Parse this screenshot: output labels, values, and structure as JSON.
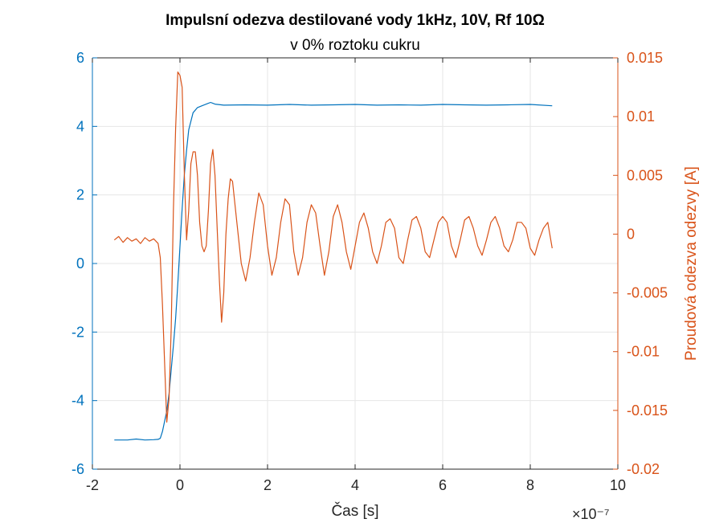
{
  "chart_data": {
    "type": "line",
    "title": "Impulsní odezva destilované vody 1kHz, 10V, Rf 10Ω",
    "subtitle": "v 0% roztoku cukru",
    "xlabel": "Čas [s]",
    "x_exponent_label": "×10⁻⁷",
    "ylabel_left": "",
    "ylabel_right": "Proudová odezva odezvy [A]",
    "xlim": [
      -2,
      10
    ],
    "ylim_left": [
      -6,
      6
    ],
    "ylim_right": [
      -0.02,
      0.015
    ],
    "x_ticks": [
      "-2",
      "0",
      "2",
      "4",
      "6",
      "8",
      "10"
    ],
    "y_ticks_left": [
      "-6",
      "-4",
      "-2",
      "0",
      "2",
      "4",
      "6"
    ],
    "y_ticks_right": [
      "-0.02",
      "-0.015",
      "-0.01",
      "-0.005",
      "0",
      "0.005",
      "0.01",
      "0.015"
    ],
    "grid": true,
    "colors": {
      "left": "#0072BD",
      "right": "#D95319",
      "grid": "#e6e6e6",
      "axis": "#262626"
    },
    "series": [
      {
        "axis": "left",
        "color": "#0072BD",
        "x": [
          -1.5,
          -1.2,
          -1.0,
          -0.8,
          -0.6,
          -0.5,
          -0.45,
          -0.4,
          -0.35,
          -0.3,
          -0.25,
          -0.2,
          -0.15,
          -0.1,
          -0.05,
          0.0,
          0.05,
          0.1,
          0.15,
          0.2,
          0.3,
          0.4,
          0.5,
          0.6,
          0.7,
          0.8,
          1.0,
          1.5,
          2.0,
          2.5,
          3.0,
          3.5,
          4.0,
          4.5,
          5.0,
          5.5,
          6.0,
          6.5,
          7.0,
          7.5,
          8.0,
          8.5
        ],
        "y": [
          -5.15,
          -5.15,
          -5.12,
          -5.15,
          -5.14,
          -5.13,
          -5.1,
          -4.9,
          -4.6,
          -4.3,
          -3.8,
          -3.1,
          -2.4,
          -1.6,
          -0.6,
          0.5,
          1.6,
          2.6,
          3.3,
          3.9,
          4.4,
          4.55,
          4.6,
          4.65,
          4.7,
          4.65,
          4.62,
          4.63,
          4.62,
          4.64,
          4.62,
          4.63,
          4.64,
          4.62,
          4.63,
          4.62,
          4.64,
          4.63,
          4.62,
          4.63,
          4.64,
          4.6
        ]
      },
      {
        "axis": "right",
        "color": "#D95319",
        "x": [
          -1.5,
          -1.4,
          -1.3,
          -1.2,
          -1.1,
          -1.0,
          -0.9,
          -0.8,
          -0.7,
          -0.6,
          -0.5,
          -0.45,
          -0.4,
          -0.35,
          -0.3,
          -0.25,
          -0.2,
          -0.15,
          -0.1,
          -0.05,
          0.0,
          0.05,
          0.1,
          0.15,
          0.2,
          0.25,
          0.3,
          0.35,
          0.4,
          0.45,
          0.5,
          0.55,
          0.6,
          0.65,
          0.7,
          0.75,
          0.8,
          0.85,
          0.9,
          0.95,
          1.0,
          1.05,
          1.1,
          1.15,
          1.2,
          1.3,
          1.4,
          1.5,
          1.6,
          1.7,
          1.8,
          1.9,
          2.0,
          2.1,
          2.2,
          2.3,
          2.4,
          2.5,
          2.6,
          2.7,
          2.8,
          2.9,
          3.0,
          3.1,
          3.2,
          3.3,
          3.4,
          3.5,
          3.6,
          3.7,
          3.8,
          3.9,
          4.0,
          4.1,
          4.2,
          4.3,
          4.4,
          4.5,
          4.6,
          4.7,
          4.8,
          4.9,
          5.0,
          5.1,
          5.2,
          5.3,
          5.4,
          5.5,
          5.6,
          5.7,
          5.8,
          5.9,
          6.0,
          6.1,
          6.2,
          6.3,
          6.4,
          6.5,
          6.6,
          6.7,
          6.8,
          6.9,
          7.0,
          7.1,
          7.2,
          7.3,
          7.4,
          7.5,
          7.6,
          7.7,
          7.8,
          7.9,
          8.0,
          8.1,
          8.2,
          8.3,
          8.4,
          8.5
        ],
        "y": [
          -0.0005,
          -0.0002,
          -0.0007,
          -0.0003,
          -0.0006,
          -0.0004,
          -0.0008,
          -0.0003,
          -0.0006,
          -0.0004,
          -0.0008,
          -0.002,
          -0.006,
          -0.011,
          -0.016,
          -0.014,
          -0.008,
          0.002,
          0.009,
          0.0138,
          0.0135,
          0.0125,
          0.005,
          -0.0005,
          0.002,
          0.006,
          0.007,
          0.007,
          0.005,
          0.001,
          -0.001,
          -0.0015,
          -0.001,
          0.002,
          0.006,
          0.0072,
          0.005,
          0.0005,
          -0.004,
          -0.0075,
          -0.005,
          0.0,
          0.003,
          0.0047,
          0.0045,
          0.001,
          -0.0025,
          -0.004,
          -0.002,
          0.001,
          0.0035,
          0.0025,
          -0.001,
          -0.0035,
          -0.002,
          0.001,
          0.003,
          0.0025,
          -0.0015,
          -0.0035,
          -0.002,
          0.001,
          0.0025,
          0.0018,
          -0.001,
          -0.0035,
          -0.0015,
          0.0015,
          0.0025,
          0.001,
          -0.0015,
          -0.003,
          -0.001,
          0.001,
          0.0018,
          0.0005,
          -0.0015,
          -0.0025,
          -0.001,
          0.001,
          0.0013,
          0.0005,
          -0.002,
          -0.0025,
          -0.0005,
          0.0012,
          0.0015,
          0.0005,
          -0.0015,
          -0.002,
          -0.0005,
          0.001,
          0.0015,
          0.001,
          -0.001,
          -0.002,
          -0.0005,
          0.0012,
          0.0015,
          0.0005,
          -0.001,
          -0.0018,
          -0.0005,
          0.001,
          0.0015,
          0.0005,
          -0.001,
          -0.0015,
          -0.0005,
          0.001,
          0.001,
          0.0005,
          -0.0012,
          -0.0018,
          -0.0005,
          0.0005,
          0.001,
          -0.0012
        ]
      }
    ]
  }
}
